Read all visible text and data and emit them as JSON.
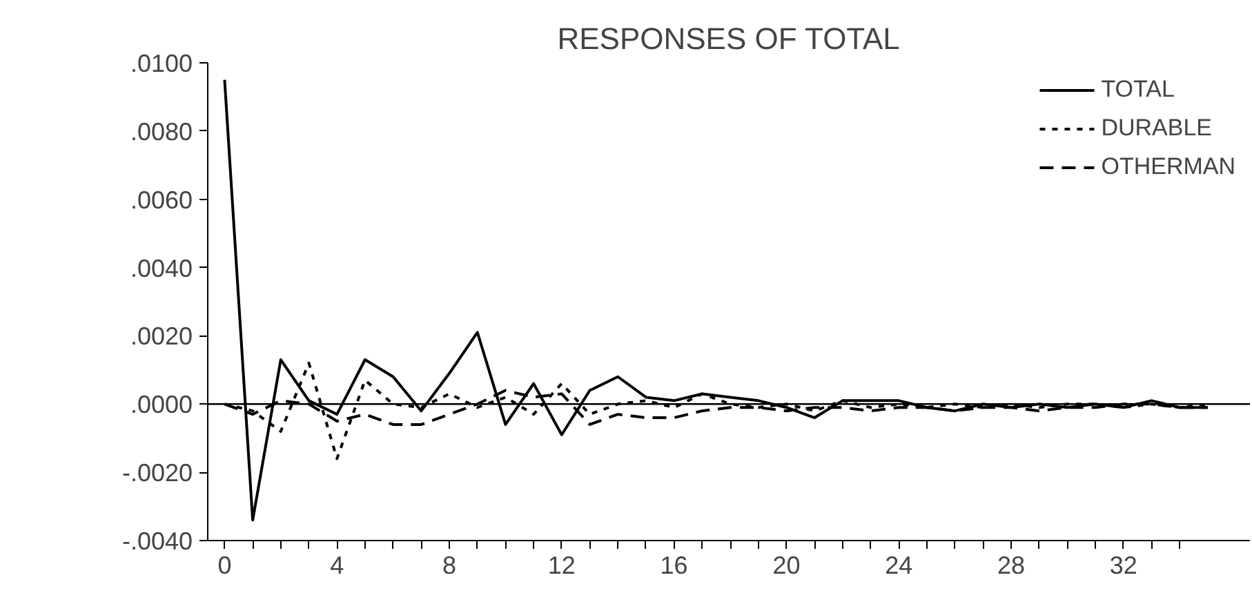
{
  "chart_data": {
    "type": "line",
    "title": "RESPONSES OF TOTAL",
    "x": [
      0,
      1,
      2,
      3,
      4,
      5,
      6,
      7,
      8,
      9,
      10,
      11,
      12,
      13,
      14,
      15,
      16,
      17,
      18,
      19,
      20,
      21,
      22,
      23,
      24,
      25,
      26,
      27,
      28,
      29,
      30,
      31,
      32,
      33,
      34,
      35
    ],
    "series": [
      {
        "name": "TOTAL",
        "color": "#000000",
        "line_style": "solid",
        "values": [
          0.0095,
          -0.0034,
          0.0013,
          0.0001,
          -0.0003,
          0.0013,
          0.0008,
          -0.0002,
          0.0009,
          0.0021,
          -0.0006,
          0.0006,
          -0.0009,
          0.0004,
          0.0008,
          0.0002,
          0.0001,
          0.0003,
          0.0002,
          0.0001,
          -0.0001,
          -0.0004,
          0.0001,
          0.0001,
          0.0001,
          -0.0001,
          -0.0002,
          0.0,
          -0.0001,
          0.0,
          -0.0001,
          0.0,
          -0.0001,
          0.0001,
          -0.0001,
          -0.0001
        ]
      },
      {
        "name": "DURABLE",
        "color": "#000000",
        "line_style": "dotted",
        "values": [
          0.0,
          -0.0002,
          -0.0008,
          0.0012,
          -0.0016,
          0.0007,
          0.0,
          -0.0001,
          0.0003,
          -0.0001,
          0.0002,
          -0.0003,
          0.0006,
          -0.0003,
          0.0,
          0.0001,
          -0.0001,
          0.0003,
          0.0,
          -0.0001,
          0.0,
          -0.0002,
          0.0001,
          -0.0001,
          0.0,
          -0.0001,
          0.0,
          -0.0001,
          0.0,
          -0.0001,
          0.0,
          0.0,
          -0.0001,
          0.0,
          -0.0001,
          0.0
        ]
      },
      {
        "name": "OTHERMAN",
        "color": "#000000",
        "line_style": "dashed",
        "values": [
          0.0,
          -0.0003,
          0.0001,
          0.0,
          -0.0005,
          -0.0003,
          -0.0006,
          -0.0006,
          -0.0003,
          0.0,
          0.0004,
          0.0002,
          0.0003,
          -0.0006,
          -0.0003,
          -0.0004,
          -0.0004,
          -0.0002,
          -0.0001,
          -0.0001,
          -0.0002,
          -0.0001,
          -0.0001,
          -0.0002,
          -0.0001,
          -0.0001,
          -0.0002,
          -0.0001,
          -0.0001,
          -0.0002,
          -0.0001,
          -0.0001,
          0.0,
          0.0,
          -0.0001,
          -0.0001
        ]
      }
    ],
    "xlim": [
      -0.6,
      36.5
    ],
    "xticks": [
      0,
      {
        "value": 1,
        "label": null
      },
      {
        "value": 2,
        "label": null
      },
      {
        "value": 3,
        "label": null
      },
      4,
      {
        "value": 5,
        "label": null
      },
      {
        "value": 6,
        "label": null
      },
      {
        "value": 7,
        "label": null
      },
      8,
      {
        "value": 9,
        "label": null
      },
      {
        "value": 10,
        "label": null
      },
      {
        "value": 11,
        "label": null
      },
      12,
      {
        "value": 13,
        "label": null
      },
      {
        "value": 14,
        "label": null
      },
      {
        "value": 15,
        "label": null
      },
      16,
      {
        "value": 17,
        "label": null
      },
      {
        "value": 18,
        "label": null
      },
      {
        "value": 19,
        "label": null
      },
      20,
      {
        "value": 21,
        "label": null
      },
      {
        "value": 22,
        "label": null
      },
      {
        "value": 23,
        "label": null
      },
      24,
      {
        "value": 25,
        "label": null
      },
      {
        "value": 26,
        "label": null
      },
      {
        "value": 27,
        "label": null
      },
      28,
      {
        "value": 29,
        "label": null
      },
      {
        "value": 30,
        "label": null
      },
      {
        "value": 31,
        "label": null
      },
      32,
      {
        "value": 33,
        "label": null
      },
      {
        "value": 34,
        "label": null
      }
    ],
    "ylim": [
      -0.004,
      0.01
    ],
    "yticks": [
      {
        "value": -0.004,
        "label": "-.0040"
      },
      {
        "value": -0.002,
        "label": "-.0020"
      },
      {
        "value": 0.0,
        "label": ".0000"
      },
      {
        "value": 0.002,
        "label": ".0020"
      },
      {
        "value": 0.004,
        "label": ".0040"
      },
      {
        "value": 0.006,
        "label": ".0060"
      },
      {
        "value": 0.008,
        "label": ".0080"
      },
      {
        "value": 0.01,
        "label": ".0100"
      }
    ],
    "ref_lines": [
      {
        "axis": "y",
        "value": 0.0,
        "color": "#000000",
        "line_style": "solid"
      }
    ],
    "grid": false,
    "legend": "top right"
  }
}
